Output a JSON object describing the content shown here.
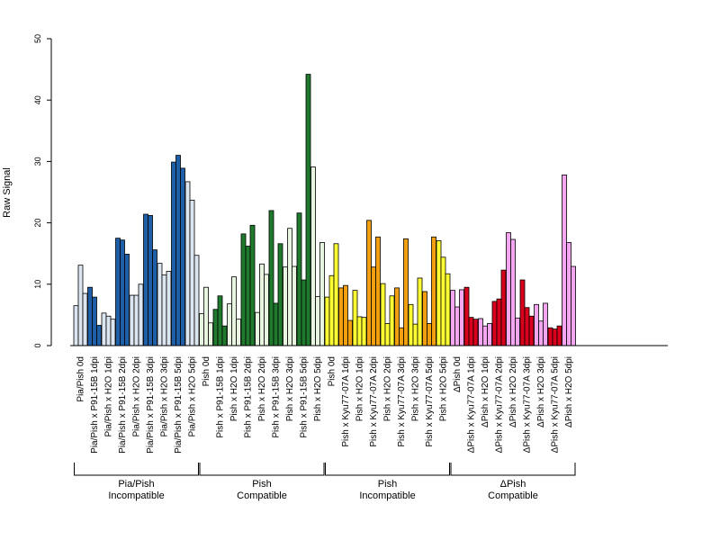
{
  "chart_data": {
    "type": "bar",
    "ylabel": "Raw Signal",
    "ylim": [
      0,
      50
    ],
    "yticks": [
      0,
      10,
      20,
      30,
      40,
      50
    ],
    "grid": false,
    "legend": "none",
    "categories": [
      "Pia/Pish 0d",
      "Pia/Pish x P91-15B 1dpi",
      "Pia/Pish x H2O 1dpi",
      "Pia/Pish x P91-15B 2dpi",
      "Pia/Pish x H2O 2dpi",
      "Pia/Pish x P91-15B 3dpi",
      "Pia/Pish x H2O 3dpi",
      "Pia/Pish x P91-15B 5dpi",
      "Pia/Pish x H2O 5dpi",
      "Pish 0d",
      "Pish x P91-15B 1dpi",
      "Pish x H2O 1dpi",
      "Pish x P91-15B 2dpi",
      "Pish x H2O 2dpi",
      "Pish x P91-15B 3dpi",
      "Pish x H2O 3dpi",
      "Pish x P91-15B 5dpi",
      "Pish x H2O 5dpi",
      "Pish 0d",
      "Pish x Kyu77-07A 1dpi",
      "Pish x H2O 1dpi",
      "Pish x Kyu77-07A 2dpi",
      "Pish x H2O 2dpi",
      "Pish x Kyu77-07A 3dpi",
      "Pish x H2O 3dpi",
      "Pish x Kyu77-07A 5dpi",
      "Pish x H2O 5dpi",
      "ΔPish 0d",
      "ΔPish x Kyu77-07A 1dpi",
      "ΔPish x H2O 1dpi",
      "ΔPish x Kyu77-07A 2dpi",
      "ΔPish x H2O 2dpi",
      "ΔPish x Kyu77-07A 3dpi",
      "ΔPish x H2O 3dpi",
      "ΔPish x Kyu77-07A 5dpi",
      "ΔPish x H2O 5dpi"
    ],
    "values": [
      [
        6.5,
        13.1,
        8.5
      ],
      [
        9.5,
        7.9,
        3.3
      ],
      [
        5.3,
        4.8,
        4.3
      ],
      [
        17.5,
        17.2,
        14.9
      ],
      [
        8.2,
        8.2,
        10.0
      ],
      [
        21.4,
        21.2,
        15.6
      ],
      [
        13.4,
        11.5,
        12.1
      ],
      [
        29.9,
        31.0,
        28.9
      ],
      [
        26.7,
        23.7,
        14.7
      ],
      [
        5.2,
        9.5,
        3.7
      ],
      [
        5.9,
        8.1,
        3.2
      ],
      [
        6.8,
        11.2,
        4.3
      ],
      [
        18.2,
        16.2,
        19.6
      ],
      [
        5.4,
        13.3,
        11.6
      ],
      [
        22.0,
        6.9,
        16.6
      ],
      [
        12.8,
        19.1,
        12.9
      ],
      [
        21.6,
        10.7,
        44.2
      ],
      [
        29.1,
        8.0,
        16.8
      ],
      [
        7.9,
        11.4,
        16.6
      ],
      [
        9.4,
        9.8,
        4.1
      ],
      [
        9.0,
        4.7,
        4.6
      ],
      [
        20.4,
        12.8,
        17.7
      ],
      [
        10.1,
        3.6,
        8.1
      ],
      [
        9.4,
        2.9,
        17.4
      ],
      [
        6.7,
        3.5,
        11.0
      ],
      [
        8.8,
        3.6,
        17.7
      ],
      [
        17.1,
        14.4,
        11.7
      ],
      [
        9.0,
        6.3,
        9.1
      ],
      [
        9.5,
        4.6,
        4.3
      ],
      [
        4.4,
        3.2,
        3.6
      ],
      [
        7.2,
        7.6,
        12.3
      ],
      [
        18.4,
        17.3,
        4.5
      ],
      [
        10.7,
        6.2,
        4.8
      ],
      [
        6.7,
        4.0,
        6.9
      ],
      [
        2.9,
        2.7,
        3.2
      ],
      [
        27.8,
        16.8,
        12.9
      ]
    ],
    "fill_colors": [
      "#dce6f1",
      "#1f5fa8",
      "#dce6f1",
      "#1f5fa8",
      "#dce6f1",
      "#1f5fa8",
      "#dce6f1",
      "#1f5fa8",
      "#dce6f1",
      "#e8f5e0",
      "#1f7a2e",
      "#e8f5e0",
      "#1f7a2e",
      "#e8f5e0",
      "#1f7a2e",
      "#e8f5e0",
      "#1f7a2e",
      "#e8f5e0",
      "#ffff33",
      "#f2a010",
      "#ffff33",
      "#f2a010",
      "#ffff33",
      "#f2a010",
      "#ffff33",
      "#f2a010",
      "#ffff33",
      "#f4a6f0",
      "#d8001c",
      "#f4a6f0",
      "#d8001c",
      "#f4a6f0",
      "#d8001c",
      "#f4a6f0",
      "#d8001c",
      "#f4a6f0"
    ],
    "groups": [
      {
        "line1": "Pia/Pish",
        "line2": "Incompatible",
        "start": 0,
        "end": 8
      },
      {
        "line1": "Pish",
        "line2": "Compatible",
        "start": 9,
        "end": 17
      },
      {
        "line1": "Pish",
        "line2": "Incompatible",
        "start": 18,
        "end": 26
      },
      {
        "line1": "ΔPish",
        "line2": "Compatible",
        "start": 27,
        "end": 35
      }
    ]
  }
}
